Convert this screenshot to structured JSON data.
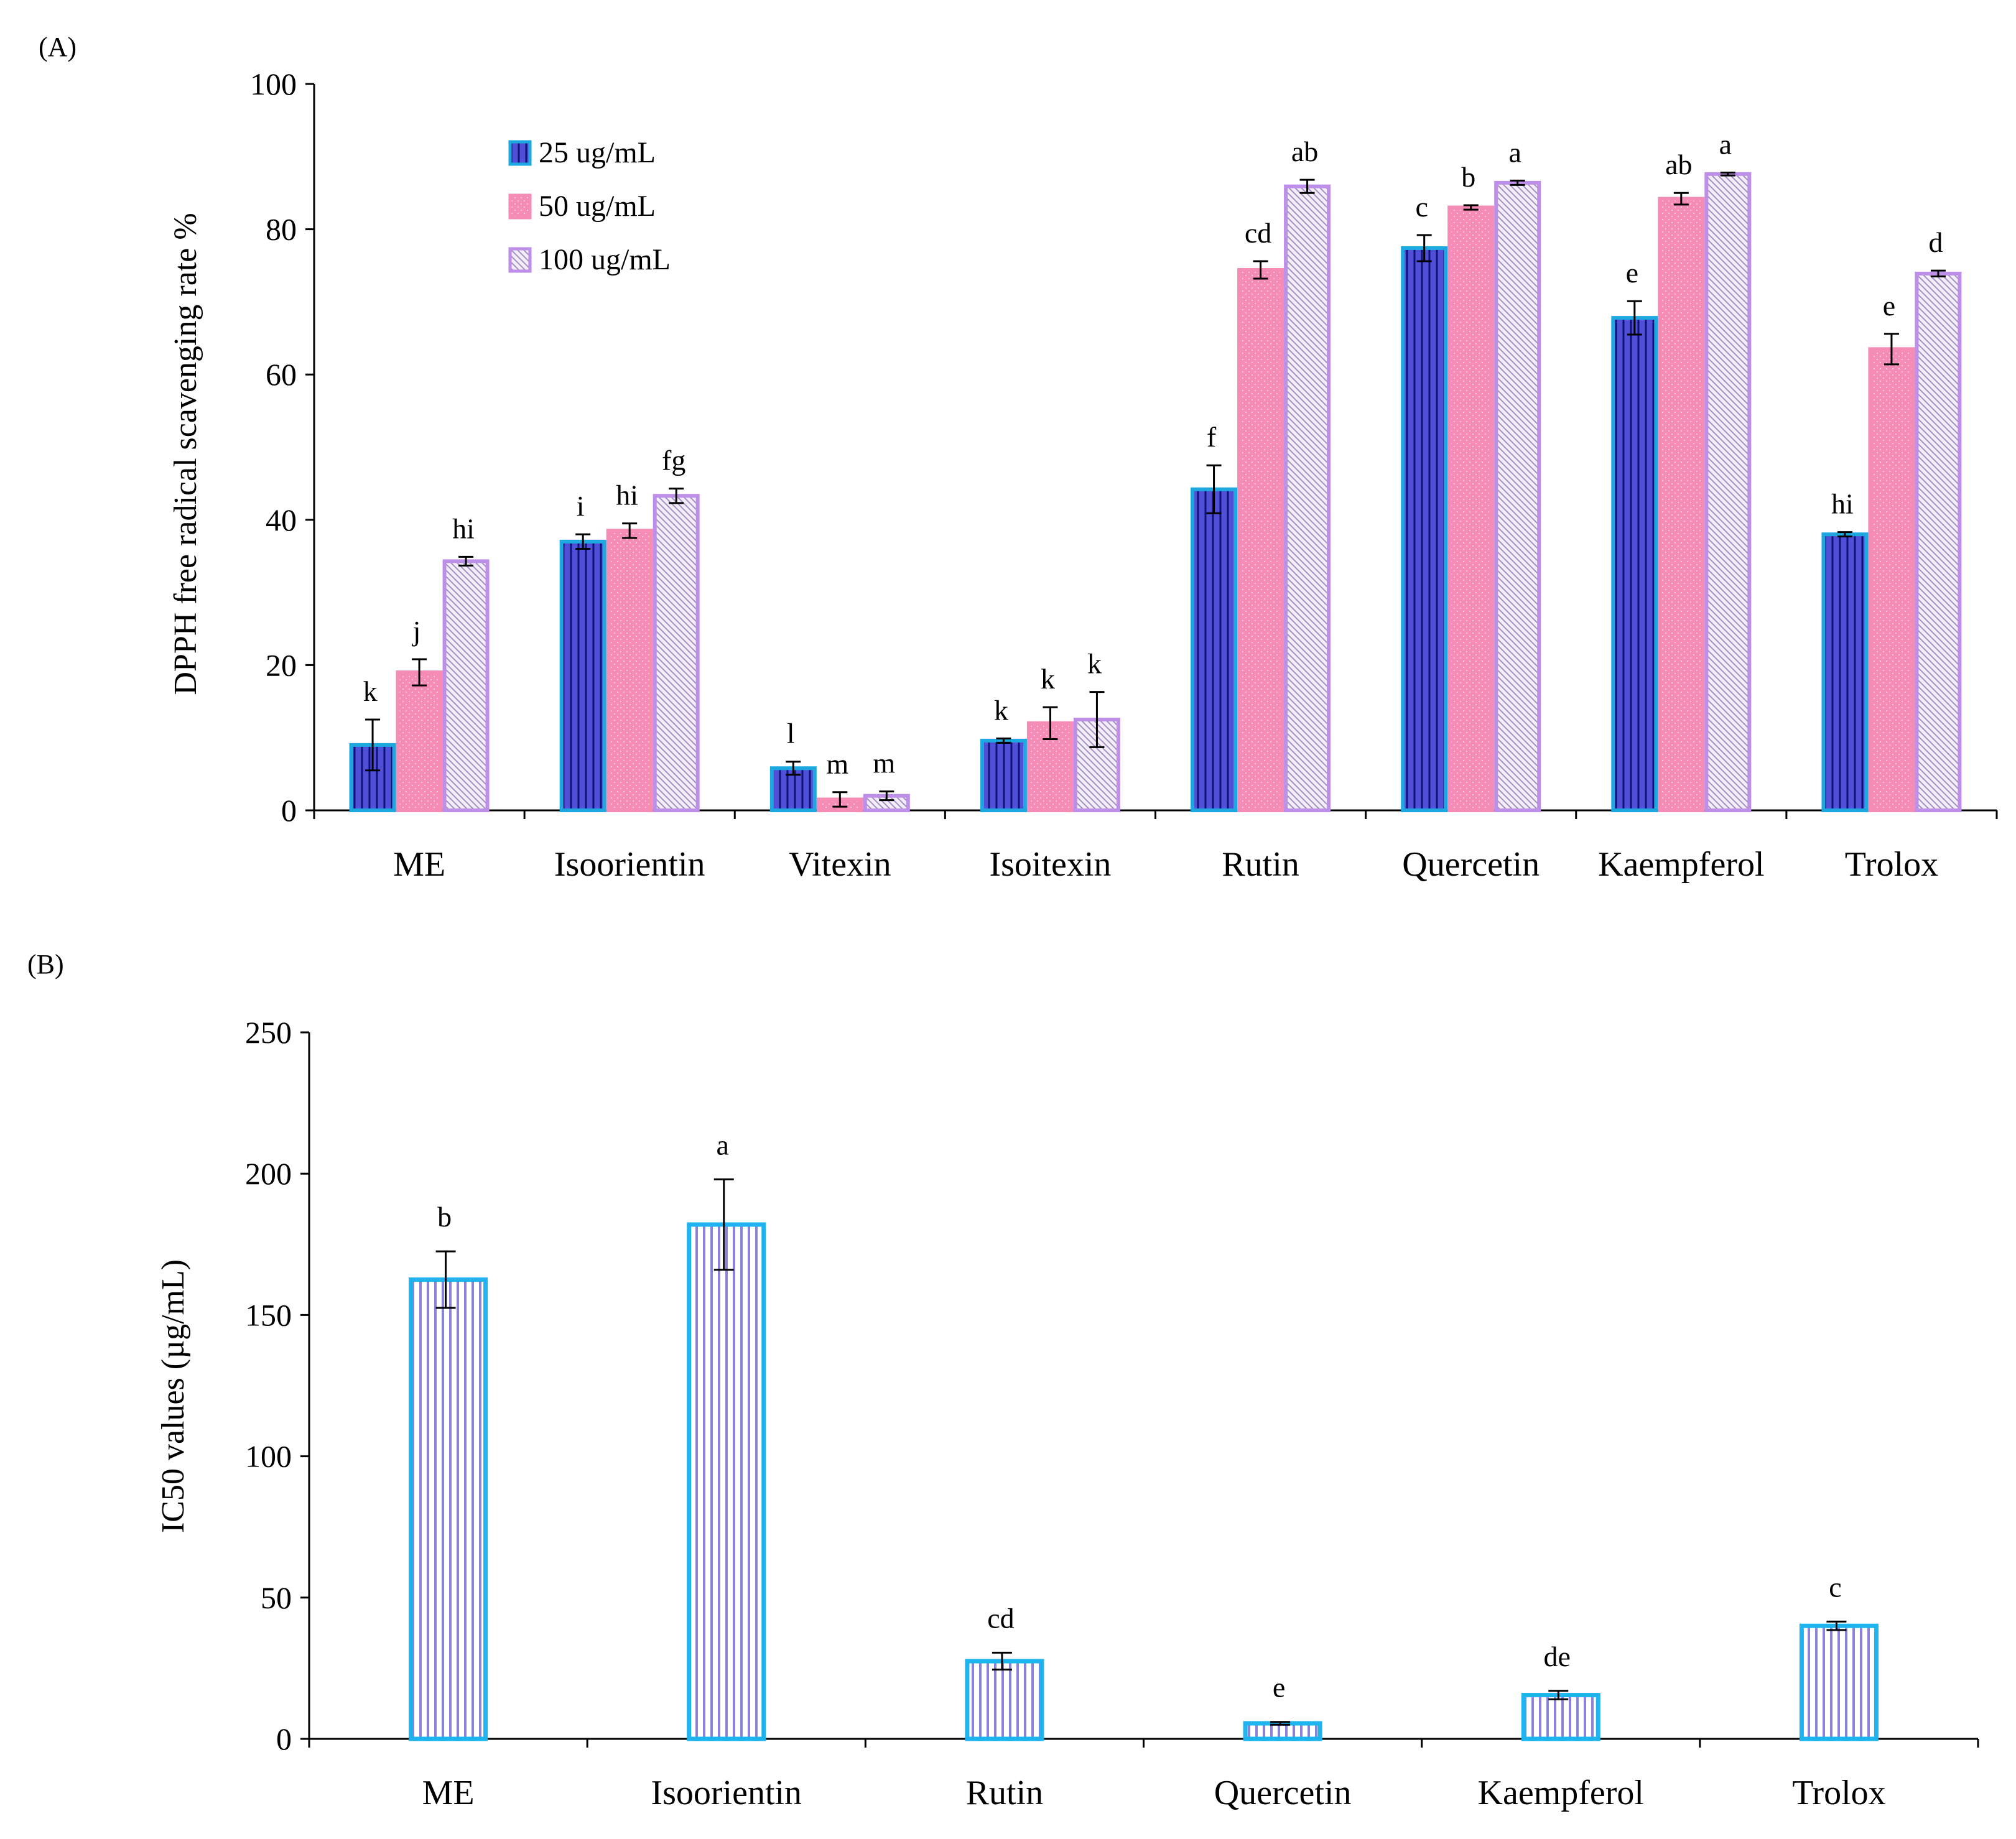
{
  "chart_data": [
    {
      "type": "bar",
      "panel_label": "(A)",
      "ylabel": "DPPH free radical scavenging rate %",
      "ylim": [
        0,
        100
      ],
      "yticks": [
        "0",
        "20",
        "40",
        "60",
        "80",
        "100"
      ],
      "legend_position": "top-left",
      "categories": [
        "ME",
        "Isoorientin",
        "Vitexin",
        "Isoitexin",
        "Rutin",
        "Quercetin",
        "Kaempferol",
        "Trolox"
      ],
      "series": [
        {
          "name": "25 ug/mL",
          "color": "#1EA8E0",
          "fill": "#4F4FD8",
          "values": [
            9.0,
            37.0,
            5.8,
            9.6,
            44.2,
            77.4,
            67.8,
            38.0
          ],
          "errors": [
            3.5,
            1.0,
            0.9,
            0.3,
            3.3,
            1.8,
            2.3,
            0.3
          ],
          "letters": [
            "k",
            "i",
            "l",
            "k",
            "f",
            "c",
            "e",
            "hi"
          ]
        },
        {
          "name": "50 ug/mL",
          "color": "#F48CB6",
          "fill": "#F48CB6",
          "values": [
            19.0,
            38.5,
            1.5,
            12.0,
            74.4,
            83.0,
            84.2,
            63.5
          ],
          "errors": [
            1.8,
            1.0,
            1.0,
            2.2,
            1.2,
            0.3,
            0.8,
            2.1
          ],
          "letters": [
            "j",
            "hi",
            "m",
            "k",
            "cd",
            "b",
            "ab",
            "e"
          ]
        },
        {
          "name": "100 ug/mL",
          "color": "#BE8FE8",
          "fill": "#D9CDE8",
          "values": [
            34.3,
            43.3,
            2.0,
            12.5,
            85.9,
            86.4,
            87.6,
            73.9
          ],
          "errors": [
            0.6,
            1.0,
            0.6,
            3.8,
            0.9,
            0.3,
            0.2,
            0.4
          ],
          "letters": [
            "hi",
            "fg",
            "m",
            "k",
            "ab",
            "a",
            "a",
            "d"
          ]
        }
      ]
    },
    {
      "type": "bar",
      "panel_label": "(B)",
      "ylabel": "IC50 values (µg/mL)",
      "ylim": [
        0,
        250
      ],
      "yticks": [
        "0",
        "50",
        "100",
        "150",
        "200",
        "250"
      ],
      "categories": [
        "ME",
        "Isoorientin",
        "Rutin",
        "Quercetin",
        "Kaempferol",
        "Trolox"
      ],
      "values": [
        162.5,
        182.0,
        27.5,
        5.5,
        15.5,
        40.0
      ],
      "errors": [
        10.0,
        16.0,
        3.0,
        0.5,
        1.5,
        1.5
      ],
      "letters": [
        "b",
        "a",
        "cd",
        "e",
        "de",
        "c"
      ],
      "color": "#1EB4F0"
    }
  ]
}
